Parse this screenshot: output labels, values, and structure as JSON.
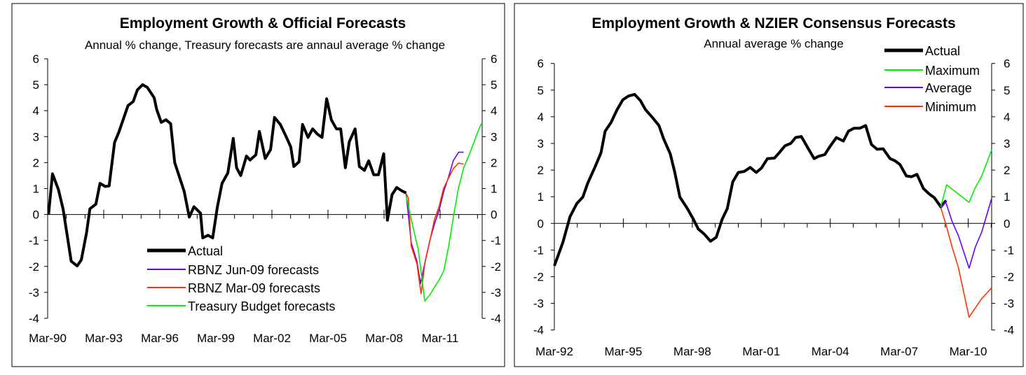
{
  "chart_data": [
    {
      "type": "line",
      "title": "Employment Growth & Official Forecasts",
      "subtitle": "Annual % change, Treasury forecasts are annaul average % change",
      "xlabel": "",
      "ylabel": "",
      "xlim": [
        1990.0,
        2013.25
      ],
      "ylim": [
        -4,
        6
      ],
      "yticks": [
        6,
        5,
        4,
        3,
        2,
        1,
        0,
        -1,
        -2,
        -3,
        -4
      ],
      "xtick_labels": [
        "Mar-90",
        "Mar-93",
        "Mar-96",
        "Mar-99",
        "Mar-02",
        "Mar-05",
        "Mar-08",
        "Mar-11"
      ],
      "xtick_values": [
        1990,
        1993,
        1996,
        1999,
        2002,
        2005,
        2008,
        2011
      ],
      "legend_position": "bottom-center",
      "series": [
        {
          "name": "Actual",
          "color": "#000000",
          "x": [
            1990.05,
            1990.26,
            1990.58,
            1990.83,
            1991.26,
            1991.58,
            1991.8,
            1992.08,
            1992.26,
            1992.58,
            1992.8,
            1993.08,
            1993.29,
            1993.58,
            1993.8,
            1994.3,
            1994.58,
            1994.8,
            1995.08,
            1995.33,
            1995.7,
            1995.83,
            1996.08,
            1996.33,
            1996.58,
            1996.8,
            1997.3,
            1997.58,
            1997.83,
            1998.18,
            1998.3,
            1998.58,
            1998.83,
            1999.08,
            1999.33,
            1999.64,
            1999.93,
            2000.11,
            2000.33,
            2000.64,
            2000.83,
            2001.14,
            2001.33,
            2001.64,
            2001.93,
            2002.14,
            2002.45,
            2002.76,
            2003.01,
            2003.17,
            2003.45,
            2003.64,
            2003.93,
            2004.18,
            2004.43,
            2004.68,
            2004.93,
            2005.18,
            2005.45,
            2005.68,
            2005.93,
            2006.14,
            2006.45,
            2006.68,
            2006.95,
            2007.18,
            2007.45,
            2007.7,
            2007.98,
            2008.18,
            2008.43,
            2008.68,
            2008.93,
            2009.18
          ],
          "y": [
            0,
            1.57,
            0.95,
            0.2,
            -1.8,
            -1.98,
            -1.75,
            -0.7,
            0.22,
            0.4,
            1.2,
            1.08,
            1.1,
            2.78,
            3.15,
            4.2,
            4.35,
            4.8,
            5.0,
            4.9,
            4.5,
            4.05,
            3.55,
            3.65,
            3.5,
            2.0,
            0.9,
            -0.1,
            0.3,
            0.05,
            -0.9,
            -0.8,
            -0.9,
            0.28,
            1.2,
            1.6,
            2.93,
            1.8,
            1.5,
            2.25,
            2.1,
            2.3,
            3.2,
            2.16,
            2.5,
            3.74,
            3.47,
            3.0,
            2.6,
            1.85,
            2.03,
            3.47,
            2.97,
            3.3,
            3.1,
            2.97,
            4.46,
            3.65,
            3.3,
            3.3,
            1.8,
            2.8,
            3.3,
            1.85,
            1.7,
            2.07,
            1.53,
            1.53,
            2.34,
            -0.22,
            0.77,
            1.04,
            0.92,
            0.83
          ]
        },
        {
          "name": "RBNZ Jun-09 forecasts",
          "color": "#6600ff",
          "x": [
            2009.18,
            2009.45,
            2009.76,
            2009.95,
            2010.2,
            2010.45,
            2010.7,
            2010.95,
            2011.2,
            2011.45,
            2011.7,
            2011.99,
            2012.26
          ],
          "y": [
            0.81,
            -1.08,
            -1.8,
            -2.66,
            -1.8,
            -1.0,
            -0.36,
            0.18,
            0.9,
            1.44,
            2.07,
            2.4,
            2.4
          ]
        },
        {
          "name": "RBNZ Mar-09 forecasts",
          "color": "#ff3300",
          "x": [
            2009.18,
            2009.3,
            2009.45,
            2009.76,
            2009.98,
            2010.18,
            2010.43,
            2010.7,
            2010.95,
            2011.18,
            2011.45,
            2011.7,
            2011.99,
            2012.26
          ],
          "y": [
            0.81,
            0.63,
            -1.22,
            -1.9,
            -3.05,
            -1.9,
            -1.08,
            -0.18,
            0.32,
            1.0,
            1.4,
            1.76,
            1.98,
            1.94
          ]
        },
        {
          "name": "Treasury Budget forecasts",
          "color": "#00ee00",
          "x": [
            2009.18,
            2009.51,
            2009.83,
            2010.18,
            2010.45,
            2010.7,
            2010.95,
            2011.2,
            2011.45,
            2011.73,
            2011.98,
            2012.26,
            2012.58,
            2012.95,
            2013.2
          ],
          "y": [
            0.72,
            -0.36,
            -1.35,
            -3.33,
            -3.1,
            -2.8,
            -2.52,
            -2.16,
            -1.26,
            0,
            1.0,
            1.8,
            2.34,
            3.06,
            3.5
          ]
        }
      ]
    },
    {
      "type": "line",
      "title": "Employment Growth & NZIER Consensus Forecasts",
      "subtitle": "Annual average % change",
      "xlabel": "",
      "ylabel": "",
      "xlim": [
        1992.0,
        2011.02
      ],
      "ylim": [
        -4,
        6
      ],
      "yticks": [
        6,
        5,
        4,
        3,
        2,
        1,
        0,
        -1,
        -2,
        -3,
        -4
      ],
      "xtick_labels": [
        "Mar-92",
        "Mar-95",
        "Mar-98",
        "Mar-01",
        "Mar-04",
        "Mar-07",
        "Mar-10"
      ],
      "xtick_values": [
        1992,
        1995,
        1998,
        2001,
        2004,
        2007,
        2010
      ],
      "legend_position": "top-right",
      "series": [
        {
          "name": "Actual",
          "color": "#000000",
          "x": [
            1992.0,
            1992.37,
            1992.68,
            1992.98,
            1993.24,
            1993.45,
            1993.75,
            1994.03,
            1994.21,
            1994.47,
            1994.72,
            1994.98,
            1995.23,
            1995.49,
            1995.75,
            1995.96,
            1996.25,
            1996.55,
            1996.75,
            1997.04,
            1997.24,
            1997.46,
            1997.76,
            1998.02,
            1998.26,
            1998.53,
            1998.79,
            1999.04,
            1999.3,
            1999.52,
            1999.76,
            2000.0,
            2000.26,
            2000.52,
            2000.78,
            2001.01,
            2001.27,
            2001.57,
            2001.78,
            2002.03,
            2002.28,
            2002.49,
            2002.74,
            2003.0,
            2003.3,
            2003.5,
            2003.76,
            2004.01,
            2004.27,
            2004.57,
            2004.79,
            2005.03,
            2005.28,
            2005.54,
            2005.79,
            2006.04,
            2006.3,
            2006.6,
            2006.83,
            2007.03,
            2007.31,
            2007.54,
            2007.77,
            2008.05,
            2008.28,
            2008.53,
            2008.81,
            2009.04
          ],
          "y": [
            -1.59,
            -0.72,
            0.25,
            0.75,
            0.99,
            1.51,
            2.08,
            2.65,
            3.46,
            3.79,
            4.25,
            4.64,
            4.78,
            4.84,
            4.6,
            4.27,
            3.99,
            3.67,
            3.18,
            2.61,
            1.91,
            0.99,
            0.59,
            0.2,
            -0.21,
            -0.41,
            -0.67,
            -0.52,
            0.16,
            0.55,
            1.56,
            1.91,
            1.95,
            2.1,
            1.91,
            2.08,
            2.43,
            2.45,
            2.65,
            2.91,
            3.0,
            3.22,
            3.26,
            2.87,
            2.43,
            2.52,
            2.58,
            2.91,
            3.22,
            3.09,
            3.46,
            3.57,
            3.57,
            3.67,
            2.96,
            2.78,
            2.8,
            2.43,
            2.34,
            2.21,
            1.78,
            1.75,
            1.84,
            1.31,
            1.12,
            0.96,
            0.62,
            0.86
          ]
        },
        {
          "name": "Maximum",
          "color": "#00ee00",
          "x": [
            2008.81,
            2009.06,
            2010.04,
            2010.31,
            2010.59,
            2011.02
          ],
          "y": [
            0.62,
            1.45,
            0.79,
            1.34,
            1.78,
            2.76
          ]
        },
        {
          "name": "Average",
          "color": "#6600ff",
          "x": [
            2008.81,
            2009.02,
            2009.3,
            2009.57,
            2010.04,
            2010.31,
            2010.59,
            2011.02
          ],
          "y": [
            0.58,
            0.81,
            0.07,
            -0.45,
            -1.68,
            -0.89,
            -0.32,
            0.94
          ]
        },
        {
          "name": "Minimum",
          "color": "#ff3300",
          "x": [
            2008.81,
            2009.04,
            2009.3,
            2009.57,
            2010.04,
            2010.31,
            2010.59,
            2011.02
          ],
          "y": [
            0.58,
            -0.06,
            -0.89,
            -1.64,
            -3.52,
            -3.17,
            -2.82,
            -2.42
          ]
        }
      ]
    }
  ]
}
